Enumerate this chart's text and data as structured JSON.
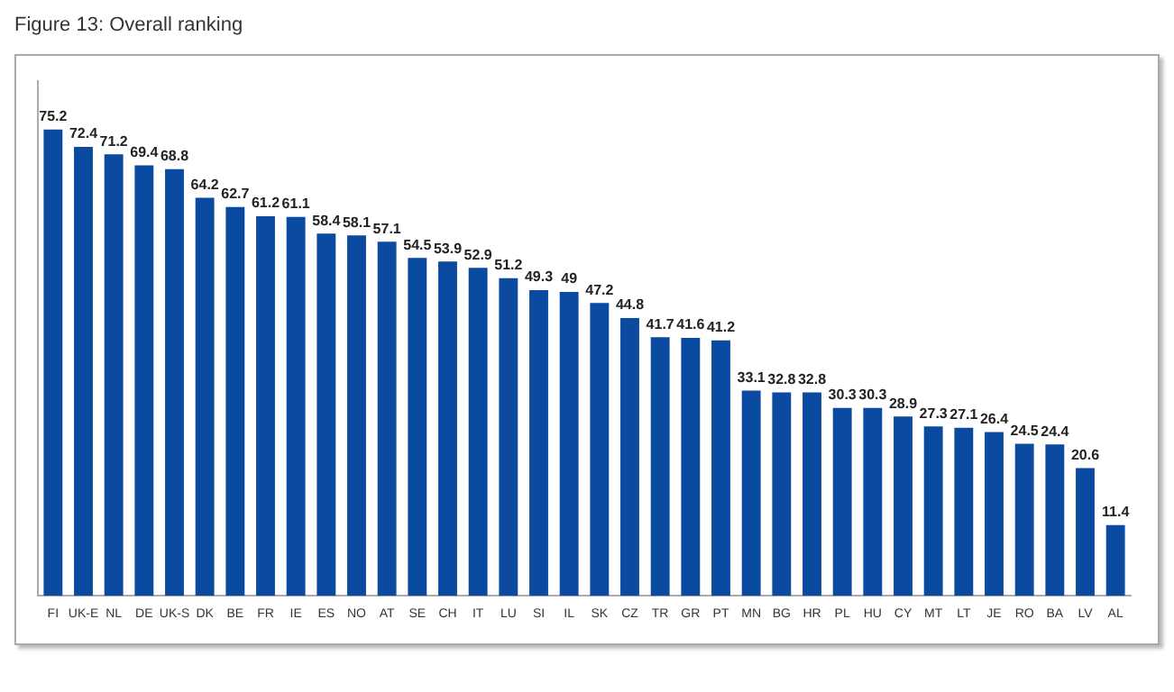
{
  "chart_data": {
    "type": "bar",
    "title": "Figure 13: Overall ranking",
    "categories": [
      "FI",
      "UK-E",
      "NL",
      "DE",
      "UK-S",
      "DK",
      "BE",
      "FR",
      "IE",
      "ES",
      "NO",
      "AT",
      "SE",
      "CH",
      "IT",
      "LU",
      "SI",
      "IL",
      "SK",
      "CZ",
      "TR",
      "GR",
      "PT",
      "MN",
      "BG",
      "HR",
      "PL",
      "HU",
      "CY",
      "MT",
      "LT",
      "JE",
      "RO",
      "BA",
      "LV",
      "AL"
    ],
    "values": [
      75.2,
      72.4,
      71.2,
      69.4,
      68.8,
      64.2,
      62.7,
      61.2,
      61.1,
      58.4,
      58.1,
      57.1,
      54.5,
      53.9,
      52.9,
      51.2,
      49.3,
      49,
      47.2,
      44.8,
      41.7,
      41.6,
      41.2,
      33.1,
      32.8,
      32.8,
      30.3,
      30.3,
      28.9,
      27.3,
      27.1,
      26.4,
      24.5,
      24.4,
      20.6,
      11.4
    ],
    "color": "#0a4aa0",
    "ylim": [
      0,
      83
    ],
    "data_labels": true,
    "grid": false,
    "legend": false,
    "tick_labels": "x"
  }
}
